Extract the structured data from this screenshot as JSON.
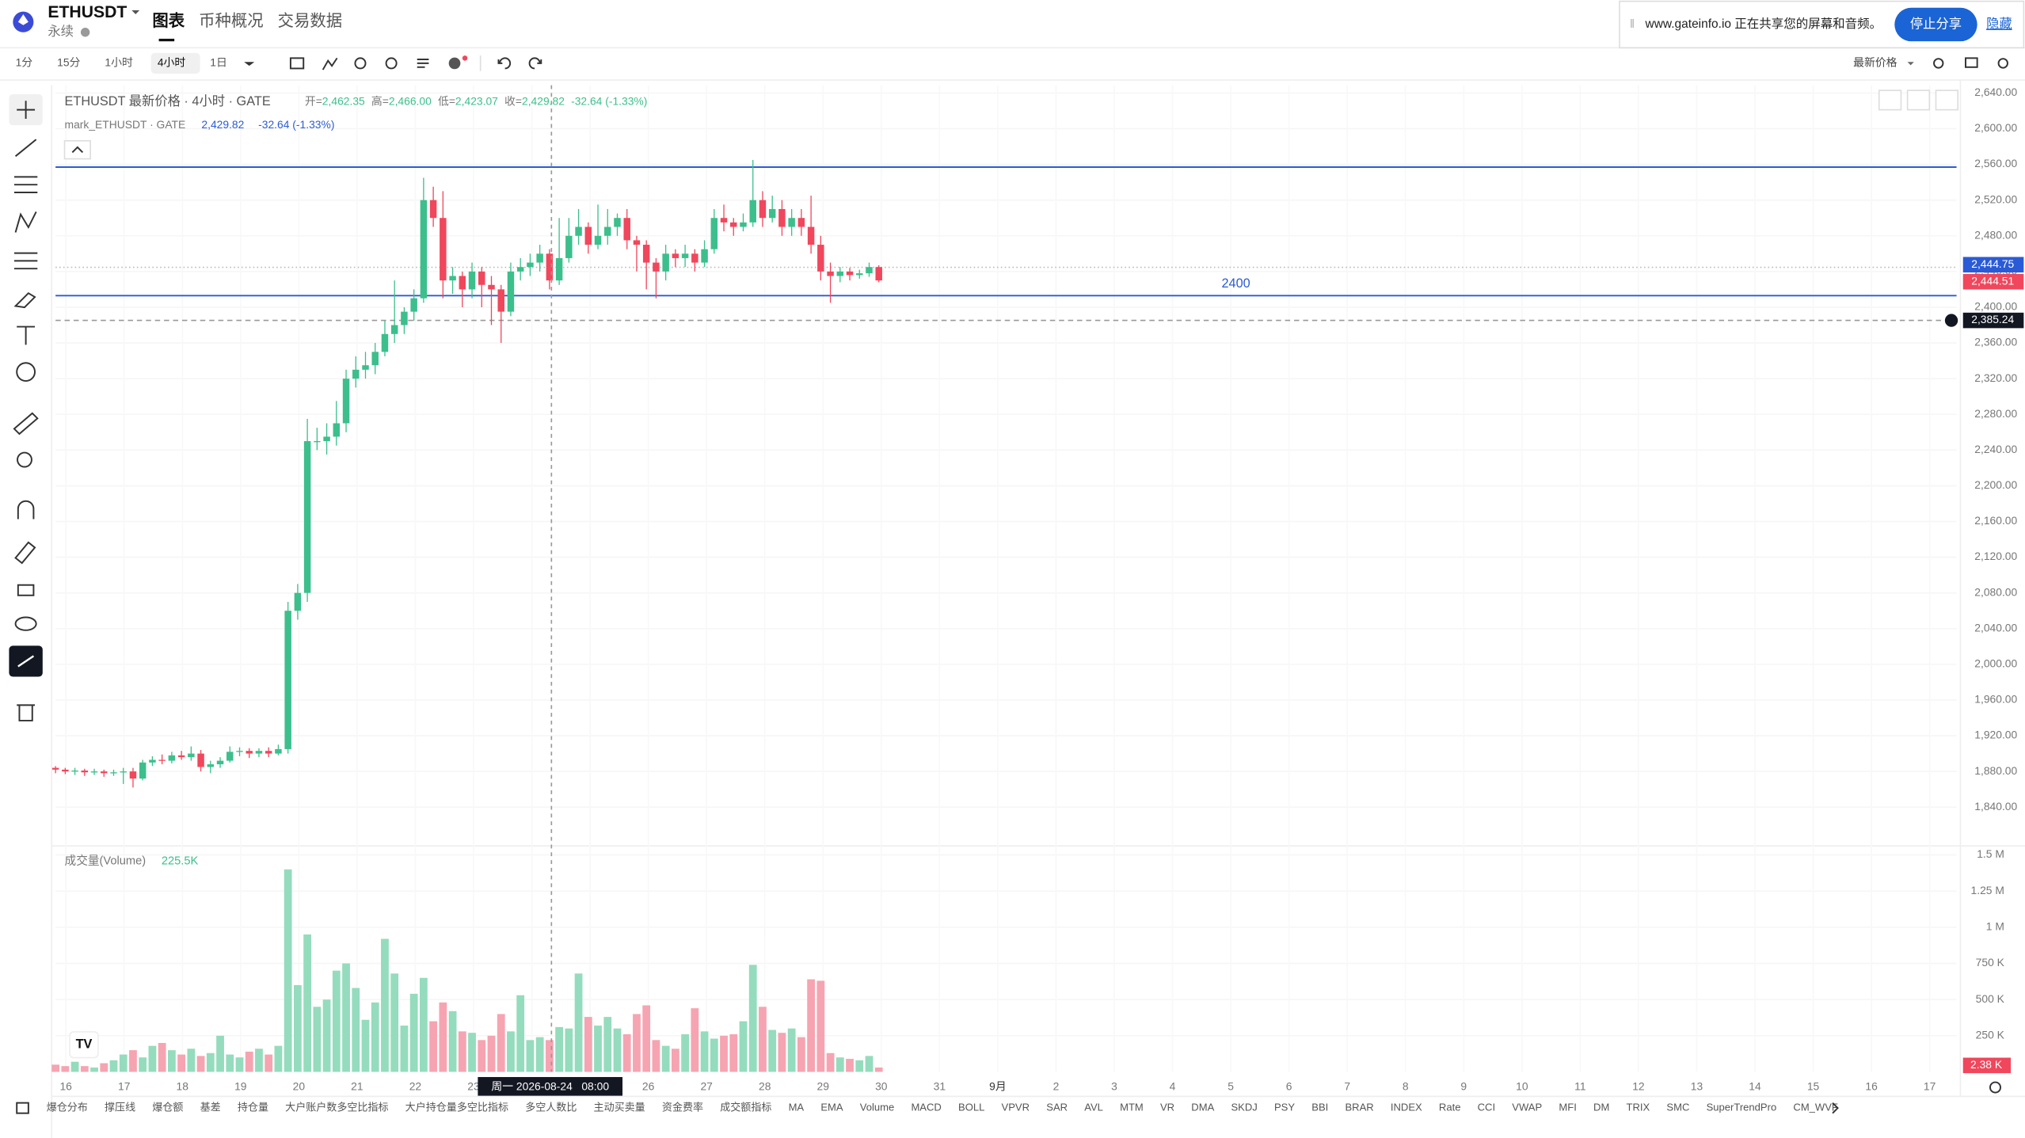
{
  "header": {
    "symbol": "ETHUSDT",
    "subtitle": "永续",
    "tabs": [
      "图表",
      "币种概况",
      "交易数据"
    ]
  },
  "toolbar": {
    "intervals": [
      "1分",
      "15分",
      "1小时",
      "4小时",
      "1日"
    ],
    "price_mode": "最新价格"
  },
  "share_banner": {
    "text": "www.gateinfo.io 正在共享您的屏幕和音频。",
    "button": "停止分享",
    "link": "隐藏"
  },
  "legend": {
    "title": "ETHUSDT 最新价格 · 4小时 · GATE",
    "items": [
      {
        "key": "开=",
        "value": "2,462.35"
      },
      {
        "key": "高=",
        "value": "2,466.00"
      },
      {
        "key": "低=",
        "value": "2,423.07"
      },
      {
        "key": "收=",
        "value": "2,429.82"
      }
    ],
    "change": "-32.64 (-1.33%)",
    "mark_title": "mark_ETHUSDT · GATE",
    "mark_value": "2,429.82",
    "mark_change": "-32.64 (-1.33%)"
  },
  "chart": {
    "type": "candlestick",
    "up_color": "#3cbf8c",
    "down_color": "#f0475c",
    "volume_up_color": "#94dcbd",
    "volume_down_color": "#f6a4b1",
    "ylim": [
      1840,
      2640
    ],
    "yticks": [
      {
        "value": 2640,
        "label": "2,640.00"
      },
      {
        "value": 2600,
        "label": "2,600.00"
      },
      {
        "value": 2560,
        "label": "2,560.00"
      },
      {
        "value": 2520,
        "label": "2,520.00"
      },
      {
        "value": 2480,
        "label": "2,480.00"
      },
      {
        "value": 2440,
        "label": "2,440.00"
      },
      {
        "value": 2400,
        "label": "2,400.00"
      },
      {
        "value": 2360,
        "label": "2,360.00"
      },
      {
        "value": 2320,
        "label": "2,320.00"
      },
      {
        "value": 2280,
        "label": "2,280.00"
      },
      {
        "value": 2240,
        "label": "2,240.00"
      },
      {
        "value": 2200,
        "label": "2,200.00"
      },
      {
        "value": 2160,
        "label": "2,160.00"
      },
      {
        "value": 2120,
        "label": "2,120.00"
      },
      {
        "value": 2080,
        "label": "2,080.00"
      },
      {
        "value": 2040,
        "label": "2,040.00"
      },
      {
        "value": 2000,
        "label": "2,000.00"
      },
      {
        "value": 1960,
        "label": "1,960.00"
      },
      {
        "value": 1920,
        "label": "1,920.00"
      },
      {
        "value": 1880,
        "label": "1,880.00"
      },
      {
        "value": 1840,
        "label": "1,840.00"
      }
    ],
    "hlines": [
      {
        "value": 2557
      },
      {
        "value": 2413,
        "label": "2400"
      }
    ],
    "price_tags": [
      {
        "value": 2444.75,
        "label": "2,444.75",
        "color": "#2a5bd7"
      },
      {
        "value": 2444.51,
        "label": "2,444.51",
        "color": "#f0475c"
      },
      {
        "value": 2385.24,
        "label": "2,385.24",
        "color": "#131722"
      }
    ],
    "dates": [
      "16",
      "17",
      "18",
      "19",
      "20",
      "21",
      "22",
      "23",
      "24",
      "25",
      "26",
      "27",
      "28",
      "29",
      "30",
      "31",
      "9月",
      "2",
      "3",
      "4",
      "5",
      "6",
      "7",
      "8",
      "9",
      "10",
      "11",
      "12",
      "13",
      "14",
      "15",
      "16",
      "17"
    ],
    "crosshair": "周一 2026-08-24   08:00",
    "candles": [
      [
        1884,
        1886,
        1878,
        1882
      ],
      [
        1882,
        1884,
        1877,
        1880
      ],
      [
        1880,
        1884,
        1876,
        1881
      ],
      [
        1881,
        1883,
        1875,
        1879
      ],
      [
        1879,
        1883,
        1876,
        1880
      ],
      [
        1880,
        1882,
        1874,
        1878
      ],
      [
        1878,
        1882,
        1875,
        1879
      ],
      [
        1879,
        1884,
        1866,
        1880
      ],
      [
        1880,
        1884,
        1862,
        1872
      ],
      [
        1872,
        1893,
        1870,
        1890
      ],
      [
        1890,
        1897,
        1886,
        1893
      ],
      [
        1893,
        1899,
        1888,
        1892
      ],
      [
        1892,
        1902,
        1889,
        1898
      ],
      [
        1898,
        1903,
        1893,
        1896
      ],
      [
        1896,
        1908,
        1892,
        1900
      ],
      [
        1900,
        1904,
        1880,
        1885
      ],
      [
        1885,
        1892,
        1878,
        1888
      ],
      [
        1888,
        1896,
        1884,
        1892
      ],
      [
        1892,
        1908,
        1890,
        1902
      ],
      [
        1902,
        1907,
        1897,
        1903
      ],
      [
        1903,
        1906,
        1895,
        1900
      ],
      [
        1900,
        1906,
        1896,
        1903
      ],
      [
        1903,
        1907,
        1896,
        1900
      ],
      [
        1900,
        1910,
        1898,
        1905
      ],
      [
        1905,
        2070,
        1900,
        2060
      ],
      [
        2060,
        2090,
        2050,
        2080
      ],
      [
        2080,
        2275,
        2070,
        2250
      ],
      [
        2250,
        2265,
        2240,
        2250
      ],
      [
        2250,
        2270,
        2235,
        2255
      ],
      [
        2255,
        2295,
        2245,
        2270
      ],
      [
        2270,
        2330,
        2260,
        2320
      ],
      [
        2320,
        2345,
        2310,
        2330
      ],
      [
        2330,
        2350,
        2320,
        2335
      ],
      [
        2335,
        2360,
        2325,
        2350
      ],
      [
        2350,
        2385,
        2345,
        2370
      ],
      [
        2370,
        2430,
        2360,
        2380
      ],
      [
        2380,
        2400,
        2370,
        2395
      ],
      [
        2395,
        2420,
        2385,
        2410
      ],
      [
        2410,
        2545,
        2405,
        2520
      ],
      [
        2520,
        2535,
        2490,
        2500
      ],
      [
        2500,
        2530,
        2410,
        2430
      ],
      [
        2430,
        2445,
        2415,
        2435
      ],
      [
        2435,
        2440,
        2400,
        2420
      ],
      [
        2420,
        2450,
        2410,
        2440
      ],
      [
        2440,
        2445,
        2400,
        2425
      ],
      [
        2425,
        2435,
        2380,
        2420
      ],
      [
        2420,
        2425,
        2360,
        2395
      ],
      [
        2395,
        2450,
        2390,
        2440
      ],
      [
        2440,
        2455,
        2430,
        2445
      ],
      [
        2445,
        2460,
        2435,
        2450
      ],
      [
        2450,
        2470,
        2440,
        2460
      ],
      [
        2460,
        2465,
        2420,
        2430
      ],
      [
        2430,
        2500,
        2425,
        2455
      ],
      [
        2455,
        2500,
        2450,
        2480
      ],
      [
        2480,
        2510,
        2470,
        2490
      ],
      [
        2490,
        2495,
        2460,
        2470
      ],
      [
        2470,
        2515,
        2465,
        2480
      ],
      [
        2480,
        2510,
        2470,
        2490
      ],
      [
        2490,
        2505,
        2480,
        2500
      ],
      [
        2500,
        2510,
        2465,
        2475
      ],
      [
        2475,
        2480,
        2440,
        2470
      ],
      [
        2470,
        2475,
        2420,
        2450
      ],
      [
        2450,
        2455,
        2410,
        2440
      ],
      [
        2440,
        2470,
        2430,
        2460
      ],
      [
        2460,
        2465,
        2445,
        2455
      ],
      [
        2455,
        2470,
        2445,
        2460
      ],
      [
        2460,
        2465,
        2440,
        2450
      ],
      [
        2450,
        2475,
        2445,
        2465
      ],
      [
        2465,
        2510,
        2460,
        2500
      ],
      [
        2500,
        2515,
        2485,
        2495
      ],
      [
        2495,
        2500,
        2480,
        2490
      ],
      [
        2490,
        2505,
        2485,
        2495
      ],
      [
        2495,
        2565,
        2490,
        2520
      ],
      [
        2520,
        2530,
        2490,
        2500
      ],
      [
        2500,
        2525,
        2495,
        2510
      ],
      [
        2510,
        2520,
        2480,
        2490
      ],
      [
        2490,
        2510,
        2480,
        2500
      ],
      [
        2500,
        2510,
        2480,
        2490
      ],
      [
        2490,
        2525,
        2460,
        2470
      ],
      [
        2470,
        2480,
        2430,
        2440
      ],
      [
        2440,
        2450,
        2405,
        2435
      ],
      [
        2435,
        2445,
        2428,
        2440
      ],
      [
        2440,
        2444,
        2430,
        2436
      ],
      [
        2436,
        2442,
        2432,
        2438
      ],
      [
        2438,
        2450,
        2434,
        2445
      ],
      [
        2445,
        2447,
        2428,
        2430
      ]
    ],
    "volume": {
      "title": "成交量(Volume)",
      "value": "225.5K",
      "ylim": [
        0,
        1500000
      ],
      "yticks": [
        {
          "value": 1500000,
          "label": "1.5 M"
        },
        {
          "value": 1250000,
          "label": "1.25 M"
        },
        {
          "value": 1000000,
          "label": "1 M"
        },
        {
          "value": 750000,
          "label": "750 K"
        },
        {
          "value": 500000,
          "label": "500 K"
        },
        {
          "value": 250000,
          "label": "250 K"
        }
      ],
      "tag": "2.38 K",
      "values": [
        50000,
        40000,
        70000,
        40000,
        30000,
        60000,
        80000,
        120000,
        150000,
        100000,
        180000,
        200000,
        150000,
        120000,
        160000,
        110000,
        130000,
        250000,
        120000,
        100000,
        140000,
        160000,
        120000,
        180000,
        1400000,
        600000,
        950000,
        450000,
        500000,
        700000,
        750000,
        580000,
        360000,
        480000,
        920000,
        680000,
        320000,
        540000,
        650000,
        350000,
        480000,
        420000,
        280000,
        270000,
        220000,
        250000,
        400000,
        280000,
        530000,
        220000,
        240000,
        220000,
        310000,
        300000,
        680000,
        380000,
        320000,
        380000,
        300000,
        260000,
        400000,
        460000,
        220000,
        180000,
        160000,
        260000,
        440000,
        280000,
        230000,
        250000,
        260000,
        350000,
        740000,
        450000,
        290000,
        270000,
        300000,
        240000,
        640000,
        630000,
        130000,
        100000,
        90000,
        80000,
        110000,
        30000
      ]
    }
  },
  "indicators": [
    "爆仓分布",
    "撑压线",
    "爆仓额",
    "基差",
    "持仓量",
    "大户账户数多空比指标",
    "大户持仓量多空比指标",
    "多空人数比",
    "主动买卖量",
    "资金费率",
    "成交额指标",
    "MA",
    "EMA",
    "Volume",
    "MACD",
    "BOLL",
    "VPVR",
    "SAR",
    "AVL",
    "MTM",
    "VR",
    "DMA",
    "SKDJ",
    "PSY",
    "BBI",
    "BRAR",
    "INDEX",
    "Rate",
    "CCI",
    "VWAP",
    "MFI",
    "DM",
    "TRIX",
    "SMC",
    "SuperTrendPro",
    "CM_WVF"
  ]
}
